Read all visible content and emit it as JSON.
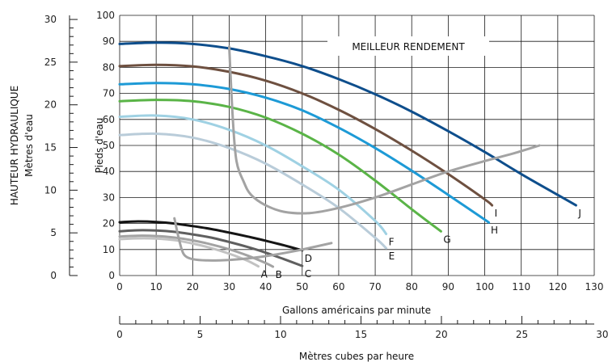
{
  "chart_data": {
    "type": "line",
    "title": "",
    "xlabel": "Gallons américains par minute",
    "ylabel": "Pieds d'eau",
    "xlim": [
      0,
      130
    ],
    "ylim": [
      0,
      100
    ],
    "x_ticks": [
      0,
      10,
      20,
      30,
      40,
      50,
      60,
      70,
      80,
      90,
      100,
      110,
      120,
      130
    ],
    "y_ticks": [
      0,
      10,
      20,
      30,
      40,
      50,
      60,
      70,
      80,
      90,
      100
    ],
    "grid": true,
    "secondary_y": {
      "label_line1": "HAUTEUR HYDRAULIQUE",
      "label_line2": "Mètres d'eau",
      "lim": [
        0,
        30.48
      ],
      "ticks": [
        0,
        5,
        10,
        15,
        20,
        25,
        30
      ]
    },
    "secondary_x": {
      "label": "Mètres cubes par heure",
      "lim": [
        0,
        29.5
      ],
      "ticks": [
        0,
        5,
        10,
        15,
        20,
        25,
        30
      ]
    },
    "annotation": "MEILLEUR RENDEMENT",
    "series": [
      {
        "name": "A",
        "color": "#c2c2c2",
        "x": [
          0,
          5,
          10,
          15,
          20,
          25,
          30,
          35,
          38
        ],
        "y": [
          14,
          14.3,
          14.2,
          13.6,
          12.3,
          10.6,
          8.4,
          5.7,
          3.5
        ]
      },
      {
        "name": "B",
        "color": "#a3a3a3",
        "x": [
          0,
          5,
          10,
          15,
          20,
          25,
          30,
          35,
          40,
          42
        ],
        "y": [
          15,
          15.3,
          15.2,
          14.6,
          13.5,
          12,
          10.1,
          7.7,
          4.8,
          3.4
        ]
      },
      {
        "name": "C",
        "color": "#5f5f5f",
        "x": [
          0,
          5,
          10,
          15,
          20,
          25,
          30,
          35,
          40,
          45,
          50
        ],
        "y": [
          17,
          17.4,
          17.3,
          16.8,
          15.8,
          14.6,
          12.9,
          11,
          8.8,
          6.3,
          3.7
        ]
      },
      {
        "name": "D",
        "color": "#151515",
        "x": [
          0,
          5,
          10,
          15,
          20,
          25,
          30,
          35,
          40,
          45,
          50
        ],
        "y": [
          20.5,
          20.8,
          20.6,
          20,
          19,
          17.9,
          16.5,
          15,
          13.4,
          11.6,
          9.7
        ]
      },
      {
        "name": "E",
        "color": "#b9ccd9",
        "x": [
          0,
          10,
          20,
          30,
          40,
          50,
          60,
          70,
          73
        ],
        "y": [
          54,
          54.5,
          53,
          49,
          43,
          35,
          26,
          14.5,
          10.5
        ]
      },
      {
        "name": "F",
        "color": "#9fd1e3",
        "x": [
          0,
          10,
          20,
          30,
          40,
          50,
          60,
          70,
          73
        ],
        "y": [
          61,
          61.5,
          60,
          56,
          50,
          42,
          33,
          21,
          16
        ]
      },
      {
        "name": "G",
        "color": "#5ab447",
        "x": [
          0,
          10,
          20,
          30,
          40,
          50,
          60,
          70,
          80,
          88
        ],
        "y": [
          67,
          67.5,
          67,
          64.8,
          60.7,
          54.5,
          46.5,
          36.5,
          25.5,
          17
        ]
      },
      {
        "name": "H",
        "color": "#1d9ad6",
        "x": [
          0,
          10,
          20,
          30,
          40,
          50,
          60,
          70,
          80,
          90,
          100,
          101
        ],
        "y": [
          73.5,
          74,
          73.5,
          71.7,
          68.4,
          63.5,
          56.8,
          49,
          40.3,
          31,
          21.5,
          20.5
        ]
      },
      {
        "name": "I",
        "color": "#6e5040",
        "x": [
          0,
          10,
          20,
          30,
          40,
          50,
          60,
          70,
          80,
          90,
          100,
          102
        ],
        "y": [
          80.5,
          81,
          80.4,
          78.3,
          74.9,
          70,
          63.7,
          56.3,
          48,
          39,
          29.3,
          27
        ]
      },
      {
        "name": "J",
        "color": "#0e4e8c",
        "x": [
          0,
          10,
          20,
          30,
          40,
          50,
          60,
          70,
          80,
          90,
          100,
          110,
          120,
          125
        ],
        "y": [
          89,
          89.5,
          89,
          87.3,
          84.3,
          80.5,
          75.5,
          69.7,
          63,
          55.5,
          47.5,
          39,
          31,
          27
        ]
      }
    ],
    "efficiency_curves": [
      {
        "color": "#a3a3a3",
        "x": [
          30,
          31,
          32,
          34,
          36,
          40,
          45,
          52,
          60,
          70,
          80,
          90,
          100,
          108,
          115
        ],
        "y": [
          88,
          60,
          44,
          36,
          31,
          27,
          24.5,
          24,
          26,
          30,
          35,
          40,
          44,
          47,
          50
        ]
      },
      {
        "color": "#a3a3a3",
        "x": [
          15,
          16,
          17,
          18,
          20,
          24,
          30,
          36,
          42,
          48,
          53,
          58
        ],
        "y": [
          22,
          15.5,
          10,
          7.5,
          6.3,
          5.8,
          6,
          6.7,
          7.9,
          9.4,
          10.9,
          12.5
        ]
      }
    ]
  }
}
